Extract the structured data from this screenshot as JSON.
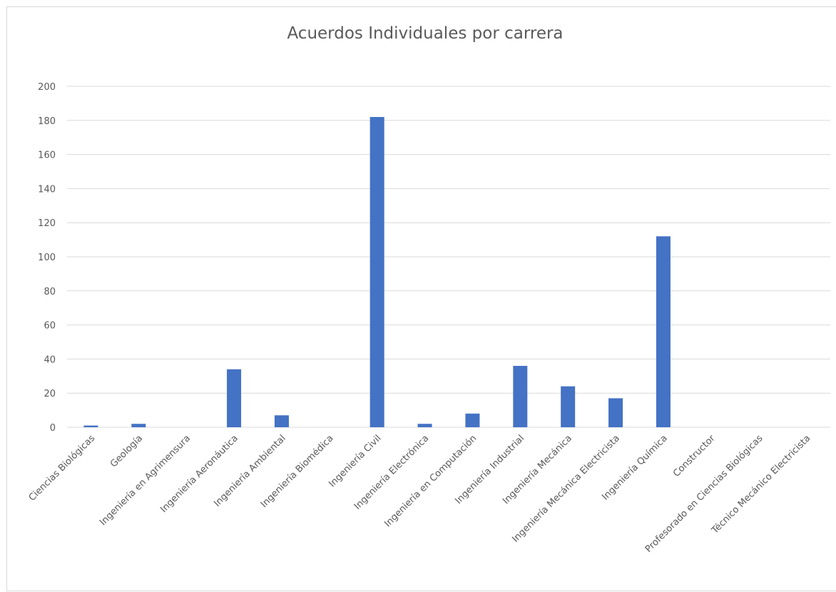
{
  "chart_data": {
    "type": "bar",
    "title": "Acuerdos Individuales por carrera",
    "xlabel": "",
    "ylabel": "",
    "ylim": [
      0,
      200
    ],
    "yticks": [
      0,
      20,
      40,
      60,
      80,
      100,
      120,
      140,
      160,
      180,
      200
    ],
    "grid": true,
    "legend": "none",
    "bar_color": "#4472c4",
    "categories": [
      "Ciencias Biológicas",
      "Geología",
      "Ingeniería en Agrimensura",
      "Ingeniería Aeronáutica",
      "Ingeniería Ambiental",
      "Ingeniería Biomédica",
      "Ingeniería Civil",
      "Ingeniería Electrónica",
      "Ingeniería en Computación",
      "Ingeniería Industrial",
      "Ingeniería Mecánica",
      "Ingeniería Mecánica Electricista",
      "Ingeniería Química",
      "Constructor",
      "Profesorado en Ciencias Biológicas",
      "Técnico Mecánico Electricista"
    ],
    "values": [
      1,
      2,
      0,
      34,
      7,
      0,
      182,
      2,
      8,
      36,
      24,
      17,
      112,
      0,
      0,
      0
    ]
  }
}
